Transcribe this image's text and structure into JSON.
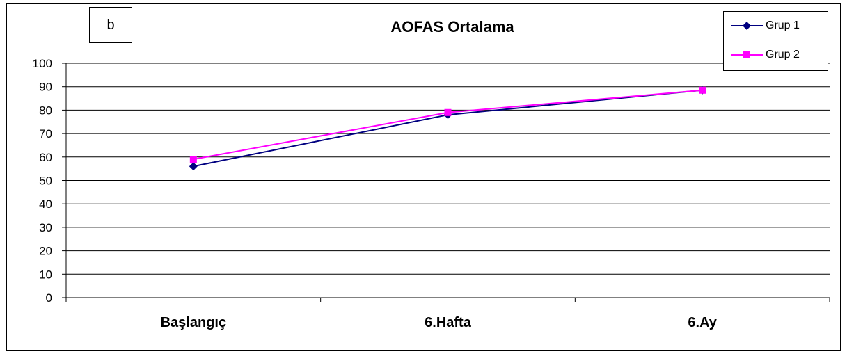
{
  "panel_label": "b",
  "chart_data": {
    "type": "line",
    "title": "AOFAS Ortalama",
    "categories": [
      "Başlangıç",
      "6.Hafta",
      "6.Ay"
    ],
    "series": [
      {
        "name": "Grup 1",
        "values": [
          56,
          78,
          88.5
        ],
        "color": "#000080",
        "marker": "diamond"
      },
      {
        "name": "Grup 2",
        "values": [
          59,
          79,
          88.5
        ],
        "color": "#ff00ff",
        "marker": "square"
      }
    ],
    "ylim": [
      0,
      100
    ],
    "yticks": [
      0,
      10,
      20,
      30,
      40,
      50,
      60,
      70,
      80,
      90,
      100
    ],
    "grid": true,
    "legend_position": "top-right",
    "xlabel": "",
    "ylabel": ""
  }
}
